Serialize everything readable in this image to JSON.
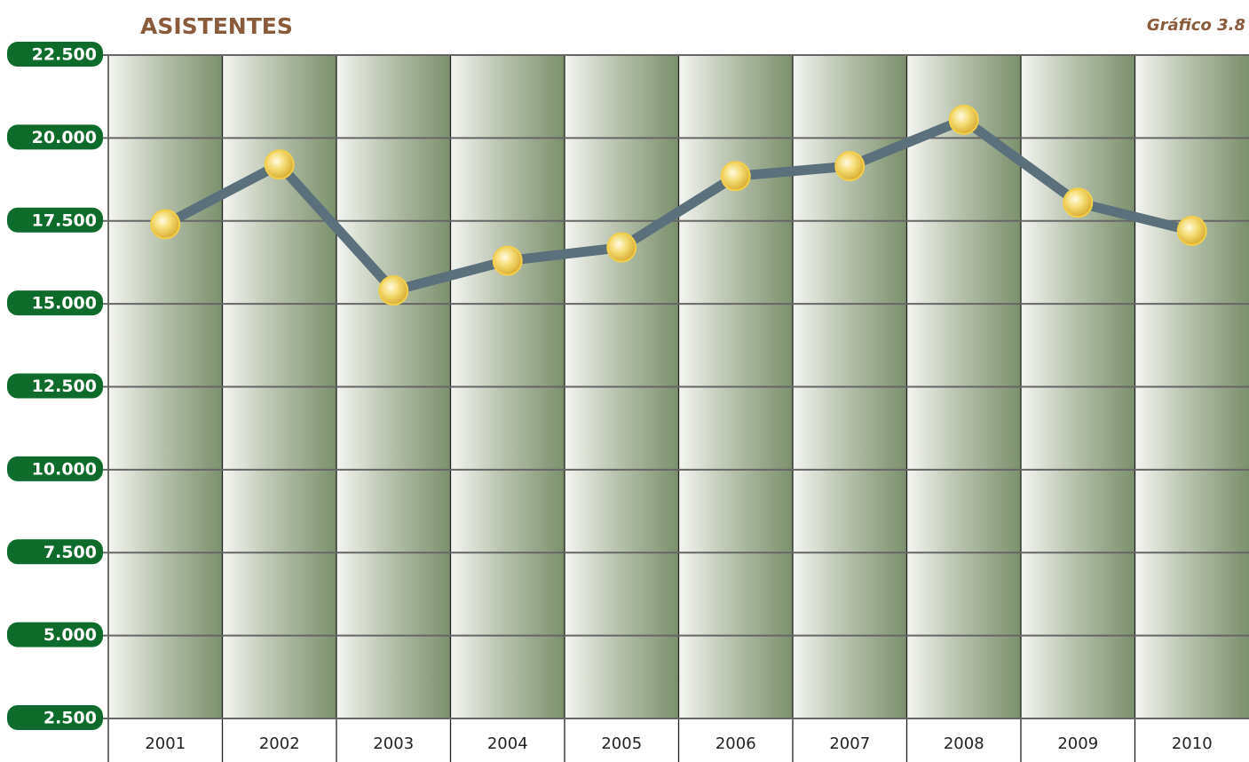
{
  "chart_data": {
    "type": "line",
    "title": "ASISTENTES",
    "subtitle": "Gráfico 3.8",
    "categories": [
      "2001",
      "2002",
      "2003",
      "2004",
      "2005",
      "2006",
      "2007",
      "2008",
      "2009",
      "2010"
    ],
    "values": [
      17400,
      19200,
      15400,
      16300,
      16700,
      18850,
      19150,
      20550,
      18050,
      17200
    ],
    "color": "#5b707a",
    "marker_color": "#f2cf4a",
    "ylim": [
      2500,
      22500
    ],
    "yticks": [
      {
        "value": 2500,
        "label": "2.500"
      },
      {
        "value": 5000,
        "label": "5.000"
      },
      {
        "value": 7500,
        "label": "7.500"
      },
      {
        "value": 10000,
        "label": "10.000"
      },
      {
        "value": 12500,
        "label": "12.500"
      },
      {
        "value": 15000,
        "label": "15.000"
      },
      {
        "value": 17500,
        "label": "17.500"
      },
      {
        "value": 20000,
        "label": "20.000"
      },
      {
        "value": 22500,
        "label": "22.500"
      }
    ],
    "grid": true
  }
}
